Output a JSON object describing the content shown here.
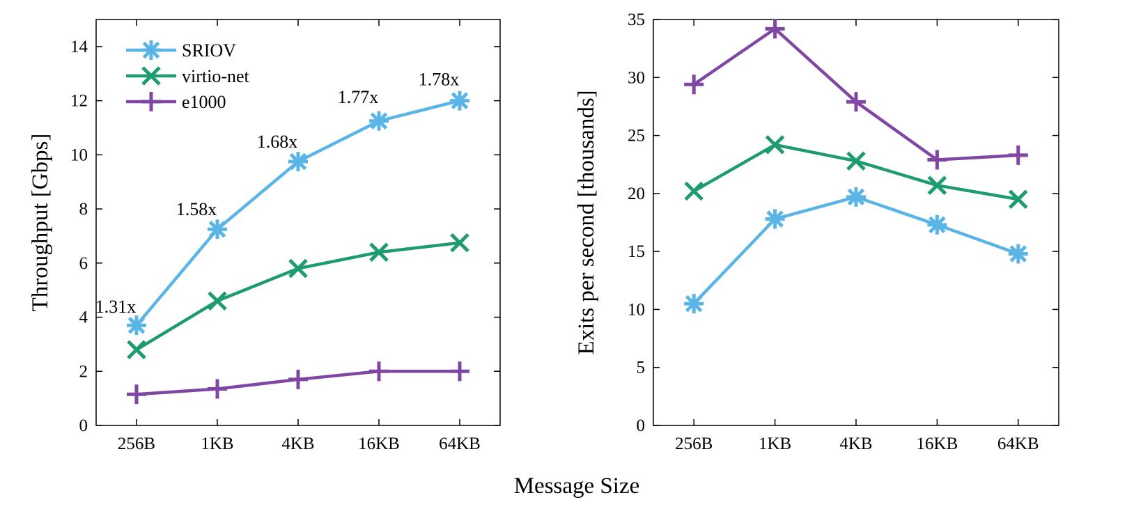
{
  "shared_xlabel": "Message Size",
  "chart_data": [
    {
      "type": "line",
      "title": "",
      "xlabel": "",
      "ylabel": "Throughput [Gbps]",
      "categories": [
        "256B",
        "1KB",
        "4KB",
        "16KB",
        "64KB"
      ],
      "ylim": [
        0,
        15
      ],
      "yticks": [
        0,
        2,
        4,
        6,
        8,
        10,
        12,
        14
      ],
      "grid": false,
      "legend_position": "top-left",
      "series": [
        {
          "name": "SRIOV",
          "values": [
            3.7,
            7.25,
            9.75,
            11.25,
            12.0
          ],
          "color": "#5ab4e5",
          "marker": "asterisk"
        },
        {
          "name": "virtio-net",
          "values": [
            2.8,
            4.6,
            5.8,
            6.4,
            6.75
          ],
          "color": "#1e9b6f",
          "marker": "x"
        },
        {
          "name": "e1000",
          "values": [
            1.15,
            1.35,
            1.7,
            2.0,
            2.0
          ],
          "color": "#7f47a3",
          "marker": "plus"
        }
      ],
      "annotations": [
        {
          "category": "256B",
          "text": "1.31x"
        },
        {
          "category": "1KB",
          "text": "1.58x"
        },
        {
          "category": "4KB",
          "text": "1.68x"
        },
        {
          "category": "16KB",
          "text": "1.77x"
        },
        {
          "category": "64KB",
          "text": "1.78x"
        }
      ]
    },
    {
      "type": "line",
      "title": "",
      "xlabel": "",
      "ylabel": "Exits per second [thousands]",
      "categories": [
        "256B",
        "1KB",
        "4KB",
        "16KB",
        "64KB"
      ],
      "ylim": [
        0,
        35
      ],
      "yticks": [
        0,
        5,
        10,
        15,
        20,
        25,
        30,
        35
      ],
      "grid": false,
      "series": [
        {
          "name": "SRIOV",
          "values": [
            10.5,
            17.8,
            19.7,
            17.3,
            14.8
          ],
          "color": "#5ab4e5",
          "marker": "asterisk"
        },
        {
          "name": "virtio-net",
          "values": [
            20.2,
            24.2,
            22.8,
            20.7,
            19.5
          ],
          "color": "#1e9b6f",
          "marker": "x"
        },
        {
          "name": "e1000",
          "values": [
            29.4,
            34.2,
            27.9,
            22.9,
            23.3
          ],
          "color": "#7f47a3",
          "marker": "plus"
        }
      ]
    }
  ]
}
